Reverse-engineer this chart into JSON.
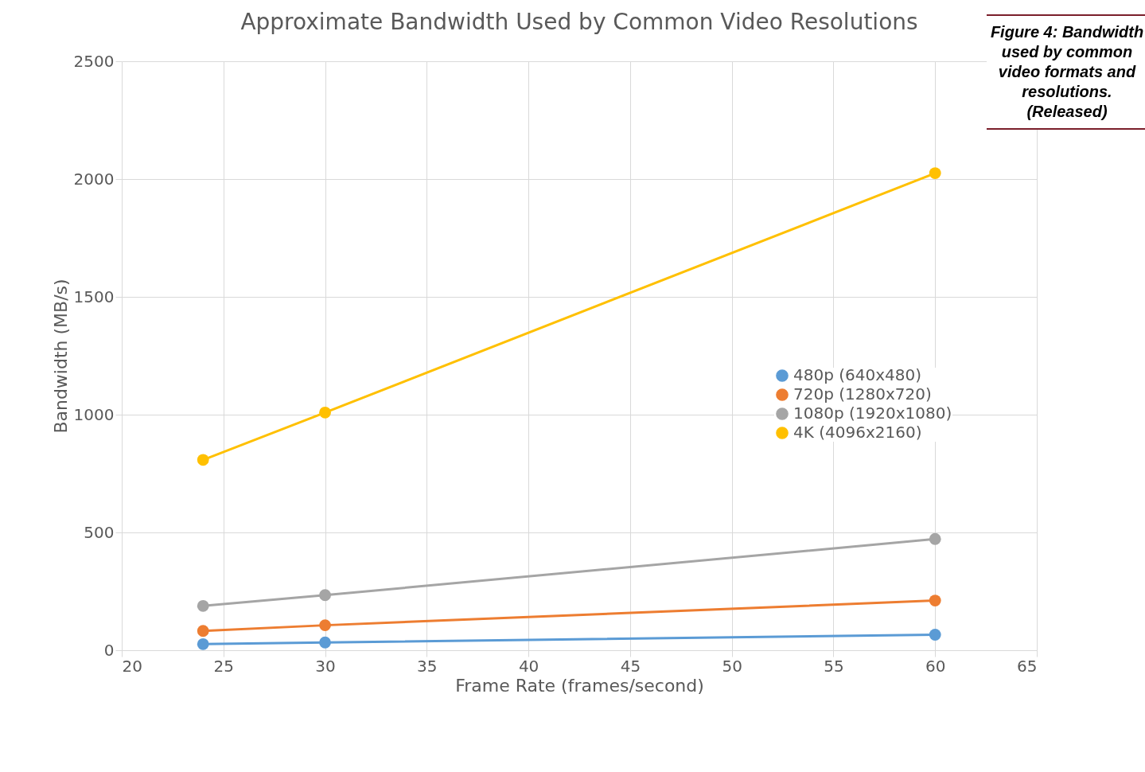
{
  "chart_data": {
    "type": "line",
    "title": "Approximate Bandwidth Used by Common Video Resolutions",
    "xlabel": "Frame Rate (frames/second)",
    "ylabel": "Bandwidth (MB/s)",
    "x": [
      24,
      30,
      60
    ],
    "series": [
      {
        "name": "480p (640x480)",
        "color": "#5b9bd5",
        "values": [
          26,
          33,
          66
        ]
      },
      {
        "name": "720p (1280x720)",
        "color": "#ed7d31",
        "values": [
          82,
          106,
          211
        ]
      },
      {
        "name": "1080p (1920x1080)",
        "color": "#a5a5a5",
        "values": [
          188,
          234,
          472
        ]
      },
      {
        "name": "4K (4096x2160)",
        "color": "#ffc000",
        "values": [
          808,
          1009,
          2025
        ]
      }
    ],
    "xlim": [
      20,
      65
    ],
    "xticks": [
      20,
      25,
      30,
      35,
      40,
      45,
      50,
      55,
      60,
      65
    ],
    "ylim": [
      0,
      2500
    ],
    "yticks": [
      0,
      500,
      1000,
      1500,
      2000,
      2500
    ],
    "grid": true,
    "legend": "right",
    "marker": "circle",
    "line_style": "solid",
    "annotations": [
      "Figure 4: Bandwidth used by common video formats and resolutions. (Released)"
    ]
  }
}
